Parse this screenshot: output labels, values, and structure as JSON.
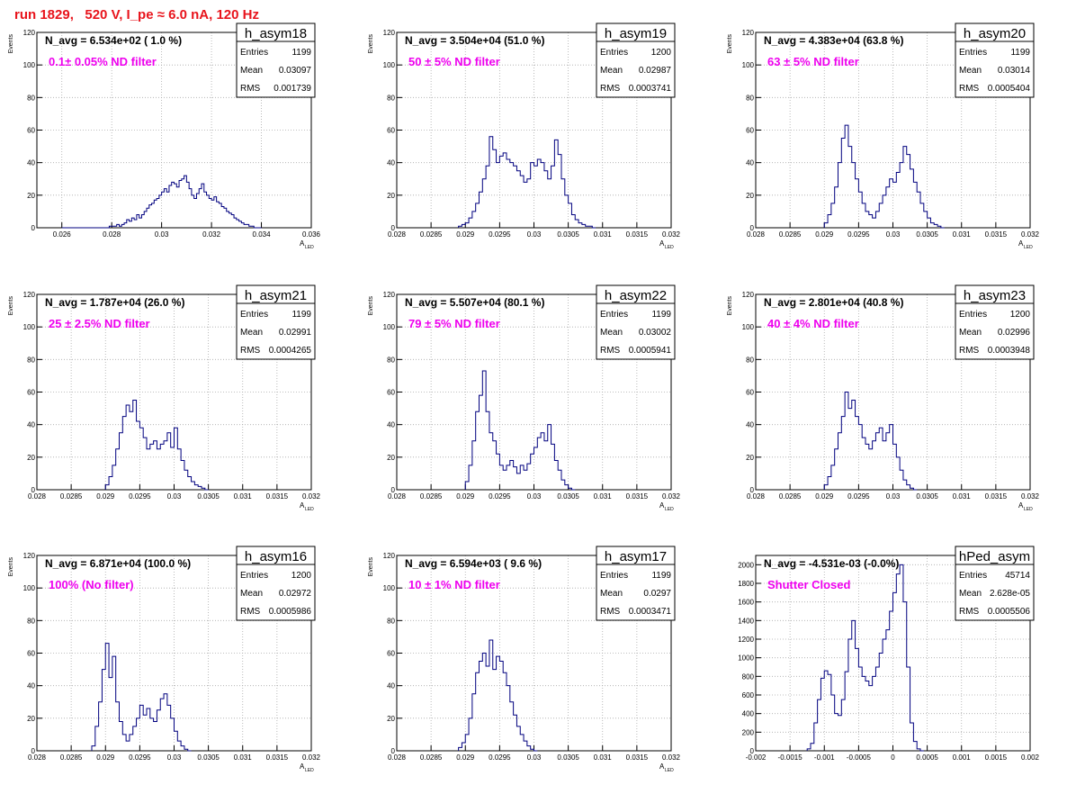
{
  "run_title": "run 1829,   520 V, I_pe ≈ 6.0 nA, 120 Hz",
  "colors": {
    "line": "#00007f",
    "title": "#e8141c",
    "filter": "#ee00ee",
    "frame": "#000000",
    "grid": "#aaaaaa"
  },
  "stats_labels": {
    "entries": "Entries",
    "mean": "Mean",
    "rms": "RMS"
  },
  "chart_data": [
    {
      "type": "histogram",
      "name": "h_asym18",
      "navg": "N_avg = 6.534e+02 ( 1.0 %)",
      "filter": "0.1± 0.05% ND filter",
      "entries": "1199",
      "mean": "0.03097",
      "rms": "0.001739",
      "xlim": [
        0.025,
        0.036
      ],
      "ylim": [
        0,
        120
      ],
      "xticks": [
        "0.026",
        "0.028",
        "0.03",
        "0.032",
        "0.034",
        "0.036"
      ],
      "xtick_vals": [
        0.026,
        0.028,
        0.03,
        0.032,
        0.034,
        0.036
      ],
      "yticks": [
        "0",
        "20",
        "40",
        "60",
        "80",
        "100",
        "120"
      ],
      "ytick_vals": [
        0,
        20,
        40,
        60,
        80,
        100,
        120
      ],
      "ylabel": "Events",
      "xlabel": "A",
      "xlabel_sub": "LED",
      "bin_start": 0.026,
      "bin_width": 0.0001,
      "values": [
        0,
        0,
        0,
        0,
        0,
        0,
        0,
        0,
        0,
        0,
        0,
        0,
        0,
        0,
        0,
        0,
        0,
        0,
        0,
        1,
        1,
        1,
        2,
        1,
        2,
        3,
        5,
        4,
        6,
        5,
        8,
        6,
        8,
        10,
        12,
        14,
        15,
        17,
        18,
        20,
        22,
        24,
        22,
        26,
        28,
        27,
        25,
        29,
        30,
        32,
        28,
        24,
        20,
        18,
        21,
        24,
        27,
        22,
        20,
        18,
        17,
        19,
        16,
        15,
        13,
        12,
        10,
        9,
        8,
        6,
        5,
        4,
        3,
        2,
        2,
        1,
        1,
        0,
        0,
        0
      ]
    },
    {
      "type": "histogram",
      "name": "h_asym19",
      "navg": "N_avg = 3.504e+04 (51.0 %)",
      "filter": "50 ± 5% ND filter",
      "entries": "1200",
      "mean": "0.02987",
      "rms": "0.0003741",
      "xlim": [
        0.028,
        0.032
      ],
      "ylim": [
        0,
        120
      ],
      "xticks": [
        "0.028",
        "0.0285",
        "0.029",
        "0.0295",
        "0.03",
        "0.0305",
        "0.031",
        "0.0315",
        "0.032"
      ],
      "xtick_vals": [
        0.028,
        0.0285,
        0.029,
        0.0295,
        0.03,
        0.0305,
        0.031,
        0.0315,
        0.032
      ],
      "yticks": [
        "0",
        "20",
        "40",
        "60",
        "80",
        "100",
        "120"
      ],
      "ytick_vals": [
        0,
        20,
        40,
        60,
        80,
        100,
        120
      ],
      "ylabel": "Events",
      "xlabel": "A",
      "xlabel_sub": "LED",
      "bin_start": 0.0289,
      "bin_width": 5e-05,
      "values": [
        1,
        2,
        3,
        6,
        10,
        15,
        22,
        30,
        38,
        56,
        48,
        40,
        44,
        46,
        42,
        40,
        38,
        35,
        32,
        28,
        30,
        40,
        38,
        42,
        40,
        35,
        30,
        38,
        54,
        45,
        30,
        20,
        15,
        8,
        5,
        3,
        2,
        1,
        1,
        0
      ]
    },
    {
      "type": "histogram",
      "name": "h_asym20",
      "navg": "N_avg = 4.383e+04 (63.8 %)",
      "filter": "63 ± 5% ND filter",
      "entries": "1199",
      "mean": "0.03014",
      "rms": "0.0005404",
      "xlim": [
        0.028,
        0.032
      ],
      "ylim": [
        0,
        120
      ],
      "xticks": [
        "0.028",
        "0.0285",
        "0.029",
        "0.0295",
        "0.03",
        "0.0305",
        "0.031",
        "0.0315",
        "0.032"
      ],
      "xtick_vals": [
        0.028,
        0.0285,
        0.029,
        0.0295,
        0.03,
        0.0305,
        0.031,
        0.0315,
        0.032
      ],
      "yticks": [
        "0",
        "20",
        "40",
        "60",
        "80",
        "100",
        "120"
      ],
      "ytick_vals": [
        0,
        20,
        40,
        60,
        80,
        100,
        120
      ],
      "ylabel": "Events",
      "xlabel": "A",
      "xlabel_sub": "LED",
      "bin_start": 0.029,
      "bin_width": 5e-05,
      "values": [
        3,
        8,
        15,
        25,
        40,
        55,
        63,
        50,
        40,
        30,
        22,
        15,
        10,
        8,
        6,
        10,
        15,
        20,
        25,
        30,
        28,
        34,
        40,
        50,
        45,
        36,
        28,
        22,
        15,
        10,
        6,
        3,
        2,
        1,
        0
      ]
    },
    {
      "type": "histogram",
      "name": "h_asym21",
      "navg": "N_avg = 1.787e+04 (26.0 %)",
      "filter": "25 ± 2.5% ND filter",
      "entries": "1199",
      "mean": "0.02991",
      "rms": "0.0004265",
      "xlim": [
        0.028,
        0.032
      ],
      "ylim": [
        0,
        120
      ],
      "xticks": [
        "0.028",
        "0.0285",
        "0.029",
        "0.0295",
        "0.03",
        "0.0305",
        "0.031",
        "0.0315",
        "0.032"
      ],
      "xtick_vals": [
        0.028,
        0.0285,
        0.029,
        0.0295,
        0.03,
        0.0305,
        0.031,
        0.0315,
        0.032
      ],
      "yticks": [
        "0",
        "20",
        "40",
        "60",
        "80",
        "100",
        "120"
      ],
      "ytick_vals": [
        0,
        20,
        40,
        60,
        80,
        100,
        120
      ],
      "ylabel": "Events",
      "xlabel": "A",
      "xlabel_sub": "LED",
      "bin_start": 0.029,
      "bin_width": 5e-05,
      "values": [
        3,
        8,
        15,
        25,
        35,
        45,
        52,
        48,
        55,
        42,
        38,
        32,
        25,
        28,
        30,
        25,
        28,
        30,
        35,
        26,
        38,
        25,
        18,
        12,
        8,
        5,
        3,
        2,
        1,
        0
      ]
    },
    {
      "type": "histogram",
      "name": "h_asym22",
      "navg": "N_avg = 5.507e+04 (80.1 %)",
      "filter": "79 ± 5% ND filter",
      "entries": "1199",
      "mean": "0.03002",
      "rms": "0.0005941",
      "xlim": [
        0.028,
        0.032
      ],
      "ylim": [
        0,
        120
      ],
      "xticks": [
        "0.028",
        "0.0285",
        "0.029",
        "0.0295",
        "0.03",
        "0.0305",
        "0.031",
        "0.0315",
        "0.032"
      ],
      "xtick_vals": [
        0.028,
        0.0285,
        0.029,
        0.0295,
        0.03,
        0.0305,
        0.031,
        0.0315,
        0.032
      ],
      "yticks": [
        "0",
        "20",
        "40",
        "60",
        "80",
        "100",
        "120"
      ],
      "ytick_vals": [
        0,
        20,
        40,
        60,
        80,
        100,
        120
      ],
      "ylabel": "Events",
      "xlabel": "A",
      "xlabel_sub": "LED",
      "bin_start": 0.029,
      "bin_width": 5e-05,
      "values": [
        5,
        15,
        30,
        48,
        58,
        73,
        48,
        35,
        30,
        22,
        15,
        12,
        15,
        18,
        14,
        10,
        15,
        12,
        16,
        22,
        26,
        32,
        35,
        30,
        40,
        28,
        18,
        12,
        6,
        3,
        1,
        0
      ]
    },
    {
      "type": "histogram",
      "name": "h_asym23",
      "navg": "N_avg = 2.801e+04 (40.8 %)",
      "filter": "40 ± 4% ND filter",
      "entries": "1200",
      "mean": "0.02996",
      "rms": "0.0003948",
      "xlim": [
        0.028,
        0.032
      ],
      "ylim": [
        0,
        120
      ],
      "xticks": [
        "0.028",
        "0.0285",
        "0.029",
        "0.0295",
        "0.03",
        "0.0305",
        "0.031",
        "0.0315",
        "0.032"
      ],
      "xtick_vals": [
        0.028,
        0.0285,
        0.029,
        0.0295,
        0.03,
        0.0305,
        0.031,
        0.0315,
        0.032
      ],
      "yticks": [
        "0",
        "20",
        "40",
        "60",
        "80",
        "100",
        "120"
      ],
      "ytick_vals": [
        0,
        20,
        40,
        60,
        80,
        100,
        120
      ],
      "ylabel": "Events",
      "xlabel": "A",
      "xlabel_sub": "LED",
      "bin_start": 0.029,
      "bin_width": 5e-05,
      "values": [
        3,
        8,
        15,
        25,
        35,
        45,
        60,
        50,
        55,
        45,
        40,
        32,
        28,
        25,
        30,
        35,
        38,
        30,
        35,
        40,
        28,
        20,
        12,
        6,
        3,
        1,
        0
      ]
    },
    {
      "type": "histogram",
      "name": "h_asym16",
      "navg": "N_avg = 6.871e+04 (100.0 %)",
      "filter": "100% (No filter)",
      "entries": "1200",
      "mean": "0.02972",
      "rms": "0.0005986",
      "xlim": [
        0.028,
        0.032
      ],
      "ylim": [
        0,
        120
      ],
      "xticks": [
        "0.028",
        "0.0285",
        "0.029",
        "0.0295",
        "0.03",
        "0.0305",
        "0.031",
        "0.0315",
        "0.032"
      ],
      "xtick_vals": [
        0.028,
        0.0285,
        0.029,
        0.0295,
        0.03,
        0.0305,
        0.031,
        0.0315,
        0.032
      ],
      "yticks": [
        "0",
        "20",
        "40",
        "60",
        "80",
        "100",
        "120"
      ],
      "ytick_vals": [
        0,
        20,
        40,
        60,
        80,
        100,
        120
      ],
      "ylabel": "Events",
      "xlabel": "A",
      "xlabel_sub": "LED",
      "bin_start": 0.0288,
      "bin_width": 5e-05,
      "values": [
        3,
        15,
        30,
        50,
        66,
        45,
        58,
        30,
        18,
        10,
        6,
        10,
        15,
        20,
        28,
        22,
        26,
        20,
        18,
        25,
        32,
        35,
        28,
        20,
        12,
        6,
        3,
        1,
        0
      ]
    },
    {
      "type": "histogram",
      "name": "h_asym17",
      "navg": "N_avg = 6.594e+03 ( 9.6 %)",
      "filter": "10 ± 1% ND filter",
      "entries": "1199",
      "mean": "0.0297",
      "rms": "0.0003471",
      "xlim": [
        0.028,
        0.032
      ],
      "ylim": [
        0,
        120
      ],
      "xticks": [
        "0.028",
        "0.0285",
        "0.029",
        "0.0295",
        "0.03",
        "0.0305",
        "0.031",
        "0.0315",
        "0.032"
      ],
      "xtick_vals": [
        0.028,
        0.0285,
        0.029,
        0.0295,
        0.03,
        0.0305,
        0.031,
        0.0315,
        0.032
      ],
      "yticks": [
        "0",
        "20",
        "40",
        "60",
        "80",
        "100",
        "120"
      ],
      "ytick_vals": [
        0,
        20,
        40,
        60,
        80,
        100,
        120
      ],
      "ylabel": "Events",
      "xlabel": "A",
      "xlabel_sub": "LED",
      "bin_start": 0.0289,
      "bin_width": 5e-05,
      "values": [
        2,
        5,
        10,
        20,
        35,
        48,
        55,
        60,
        52,
        68,
        50,
        58,
        55,
        48,
        40,
        30,
        22,
        15,
        10,
        6,
        3,
        1,
        0
      ]
    },
    {
      "type": "histogram",
      "name": "hPed_asym",
      "navg": "N_avg = -4.531e-03 (-0.0%)",
      "filter": "Shutter Closed",
      "entries": "45714",
      "mean": "2.628e-05",
      "rms": "0.0005506",
      "xlim": [
        -0.002,
        0.002
      ],
      "ylim": [
        0,
        2100
      ],
      "xticks": [
        "-0.002",
        "-0.0015",
        "-0.001",
        "-0.0005",
        "0",
        "0.0005",
        "0.001",
        "0.0015",
        "0.002"
      ],
      "xtick_vals": [
        -0.002,
        -0.0015,
        -0.001,
        -0.0005,
        0,
        0.0005,
        0.001,
        0.0015,
        0.002
      ],
      "yticks": [
        "0",
        "200",
        "400",
        "600",
        "800",
        "1000",
        "1200",
        "1400",
        "1600",
        "1800",
        "2000"
      ],
      "ytick_vals": [
        0,
        200,
        400,
        600,
        800,
        1000,
        1200,
        1400,
        1600,
        1800,
        2000
      ],
      "ylabel": "",
      "xlabel": "",
      "xlabel_sub": "",
      "bin_start": -0.00125,
      "bin_width": 5e-05,
      "values": [
        20,
        80,
        300,
        550,
        780,
        860,
        820,
        600,
        400,
        380,
        550,
        850,
        1200,
        1400,
        1100,
        900,
        800,
        750,
        700,
        800,
        900,
        1050,
        1200,
        1300,
        1500,
        1700,
        1900,
        2000,
        1600,
        900,
        300,
        100,
        20,
        0
      ]
    }
  ]
}
